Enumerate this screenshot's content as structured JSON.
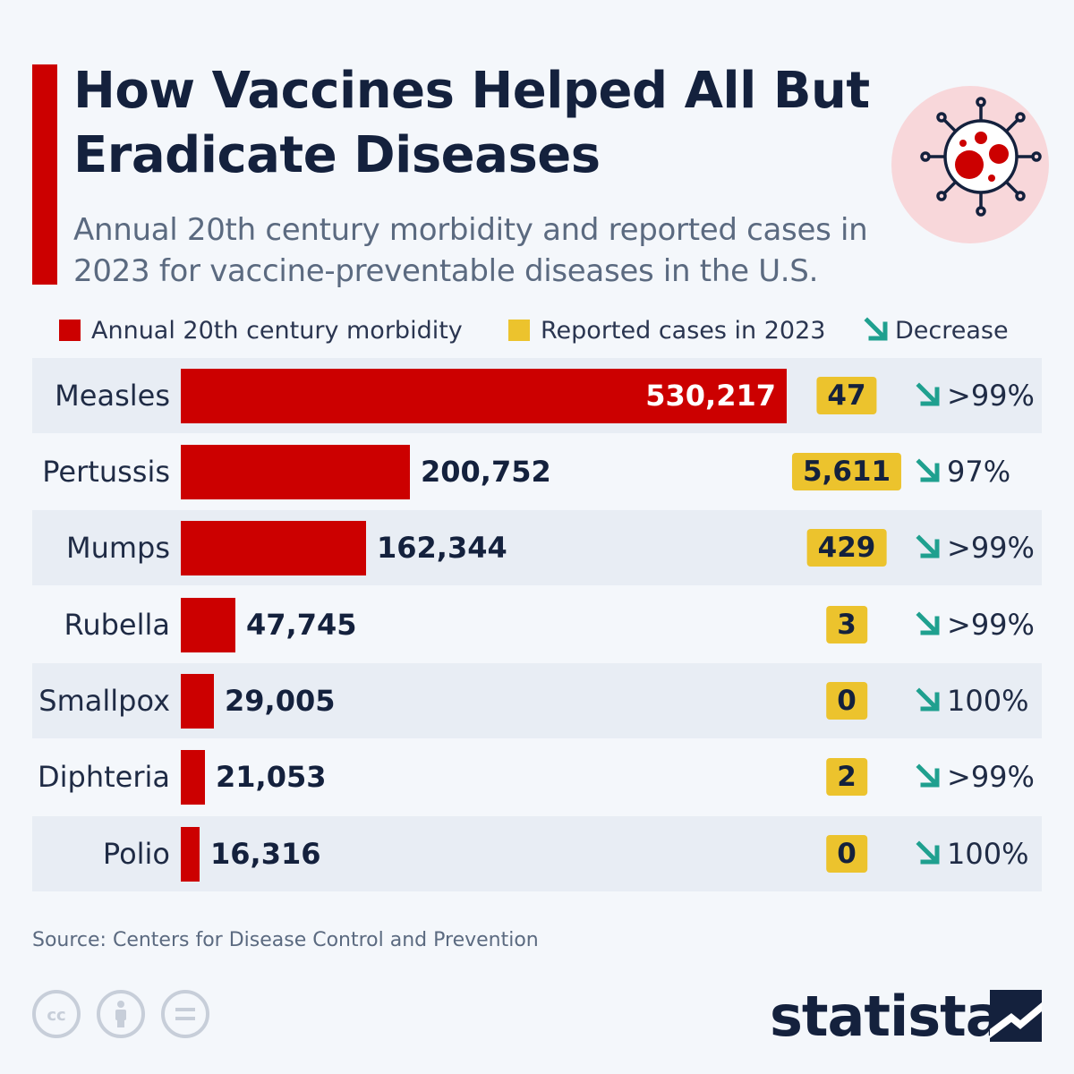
{
  "title": "How Vaccines Helped All But Eradicate Diseases",
  "subtitle": "Annual 20th century morbidity and reported cases in 2023 for vaccine-preventable diseases in the U.S.",
  "legend": {
    "morbidity": "Annual 20th century morbidity",
    "reported": "Reported cases in 2023",
    "decrease": "Decrease"
  },
  "colors": {
    "morbidity": "#cc0000",
    "reported": "#ecc32d",
    "decrease": "#1fa08f",
    "title": "#14213d"
  },
  "chart_data": {
    "type": "bar",
    "orientation": "horizontal",
    "title": "How Vaccines Helped All But Eradicate Diseases",
    "subtitle": "Annual 20th century morbidity and reported cases in 2023 for vaccine-preventable diseases in the U.S.",
    "categories": [
      "Measles",
      "Pertussis",
      "Mumps",
      "Rubella",
      "Smallpox",
      "Diphteria",
      "Polio"
    ],
    "series": [
      {
        "name": "Annual 20th century morbidity",
        "values": [
          530217,
          200752,
          162344,
          47745,
          29005,
          21053,
          16316
        ]
      },
      {
        "name": "Reported cases in 2023",
        "values": [
          47,
          5611,
          429,
          3,
          0,
          2,
          0
        ]
      }
    ],
    "rows": [
      {
        "label": "Measles",
        "morbidity": 530217,
        "morbidity_label": "530,217",
        "reported": 47,
        "reported_label": "47",
        "decrease": ">99%"
      },
      {
        "label": "Pertussis",
        "morbidity": 200752,
        "morbidity_label": "200,752",
        "reported": 5611,
        "reported_label": "5,611",
        "decrease": "97%"
      },
      {
        "label": "Mumps",
        "morbidity": 162344,
        "morbidity_label": "162,344",
        "reported": 429,
        "reported_label": "429",
        "decrease": ">99%"
      },
      {
        "label": "Rubella",
        "morbidity": 47745,
        "morbidity_label": "47,745",
        "reported": 3,
        "reported_label": "3",
        "decrease": ">99%"
      },
      {
        "label": "Smallpox",
        "morbidity": 29005,
        "morbidity_label": "29,005",
        "reported": 0,
        "reported_label": "0",
        "decrease": "100%"
      },
      {
        "label": "Diphteria",
        "morbidity": 21053,
        "morbidity_label": "21,053",
        "reported": 2,
        "reported_label": "2",
        "decrease": ">99%"
      },
      {
        "label": "Polio",
        "morbidity": 16316,
        "morbidity_label": "16,316",
        "reported": 0,
        "reported_label": "0",
        "decrease": "100%"
      }
    ],
    "xlim": [
      0,
      530217
    ],
    "grid": false,
    "legend_position": "top"
  },
  "source": "Source: Centers for Disease Control and Prevention",
  "license_icons": [
    "cc-icon",
    "attribution-icon",
    "no-derivatives-icon"
  ],
  "brand": {
    "name": "statista"
  }
}
